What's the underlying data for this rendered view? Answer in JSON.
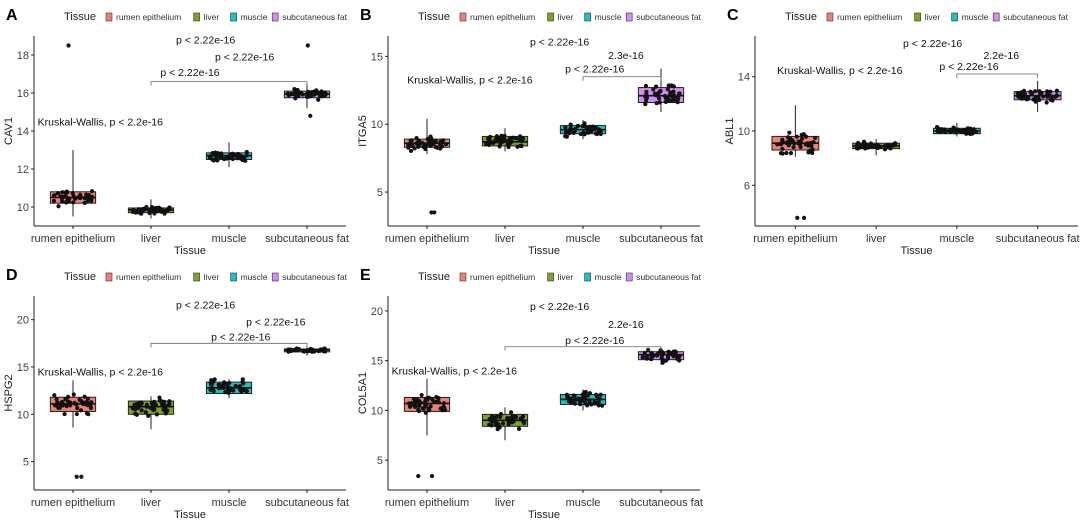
{
  "figure": {
    "description": "Multi-panel boxplot figure of gene expression across tissues"
  },
  "palette": {
    "rumen epithelium": "#f07f76",
    "liver": "#7da22c",
    "muscle": "#1fbfc6",
    "subcutaneous fat": "#d58cf0",
    "points": "#111111",
    "axis": "#222222"
  },
  "chart_data": [
    {
      "panel": "A",
      "type": "box",
      "legend_title": "Tissue",
      "legend_items": [
        "rumen epithelium",
        "liver",
        "muscle",
        "subcutaneous fat"
      ],
      "xlabel": "Tissue",
      "ylabel": "CAV1",
      "categories": [
        "rumen epithelium",
        "liver",
        "muscle",
        "subcutaneous fat"
      ],
      "ylim": [
        9,
        19
      ],
      "yticks": [
        10,
        12,
        14,
        16,
        18
      ],
      "boxes": [
        {
          "category": "rumen epithelium",
          "min": 9.5,
          "q1": 10.2,
          "median": 10.5,
          "q3": 10.8,
          "max": 13.0,
          "outliers": [
            18.5
          ]
        },
        {
          "category": "liver",
          "min": 9.4,
          "q1": 9.7,
          "median": 9.85,
          "q3": 9.95,
          "max": 10.4,
          "outliers": []
        },
        {
          "category": "muscle",
          "min": 12.1,
          "q1": 12.5,
          "median": 12.7,
          "q3": 12.85,
          "max": 13.4,
          "outliers": []
        },
        {
          "category": "subcutaneous fat",
          "min": 15.2,
          "q1": 15.75,
          "median": 15.95,
          "q3": 16.1,
          "max": 16.5,
          "outliers": [
            14.8,
            18.5
          ]
        }
      ],
      "annotations": [
        {
          "text": "Kruskal-Wallis, p < 2.2e-16",
          "at_category": 0.85,
          "y": 14.3
        },
        {
          "text": "p < 2.22e-16",
          "at_category": 2.2,
          "y": 18.6
        },
        {
          "text": "p < 2.22e-16",
          "at_category": 2.7,
          "y": 17.7
        },
        {
          "text": "p < 2.22e-16",
          "at_category": 2.0,
          "y": 16.9
        }
      ],
      "brackets": [
        {
          "from": 1,
          "to": 3,
          "y": 16.6
        }
      ]
    },
    {
      "panel": "B",
      "type": "box",
      "legend_title": "Tissue",
      "legend_items": [
        "rumen epithelium",
        "liver",
        "muscle",
        "subcutaneous fat"
      ],
      "xlabel": "Tissue",
      "ylabel": "ITGA5",
      "categories": [
        "rumen epithelium",
        "liver",
        "muscle",
        "subcutaneous fat"
      ],
      "ylim": [
        2.5,
        16.5
      ],
      "yticks": [
        5,
        10,
        15
      ],
      "boxes": [
        {
          "category": "rumen epithelium",
          "min": 7.8,
          "q1": 8.3,
          "median": 8.6,
          "q3": 8.9,
          "max": 10.4,
          "outliers": [
            3.5,
            3.5
          ]
        },
        {
          "category": "liver",
          "min": 8.0,
          "q1": 8.4,
          "median": 8.7,
          "q3": 9.1,
          "max": 9.7,
          "outliers": []
        },
        {
          "category": "muscle",
          "min": 8.9,
          "q1": 9.3,
          "median": 9.6,
          "q3": 9.9,
          "max": 10.3,
          "outliers": []
        },
        {
          "category": "subcutaneous fat",
          "min": 10.9,
          "q1": 11.6,
          "median": 12.1,
          "q3": 12.7,
          "max": 14.1,
          "outliers": []
        }
      ],
      "annotations": [
        {
          "text": "Kruskal-Wallis, p < 2.2e-16",
          "at_category": 1.05,
          "y": 13.0
        },
        {
          "text": "p < 2.22e-16",
          "at_category": 2.2,
          "y": 15.8
        },
        {
          "text": "2.3e-16",
          "at_category": 3.05,
          "y": 14.8
        },
        {
          "text": "p < 2.22e-16",
          "at_category": 2.65,
          "y": 13.8
        }
      ],
      "brackets": [
        {
          "from": 2,
          "to": 3,
          "y": 13.5
        }
      ]
    },
    {
      "panel": "C",
      "type": "box",
      "legend_title": "Tissue",
      "legend_items": [
        "rumen epithelium",
        "liver",
        "muscle",
        "subcutaneous fat"
      ],
      "xlabel": "Tissue",
      "ylabel": "ABL1",
      "categories": [
        "rumen epithelium",
        "liver",
        "muscle",
        "subcutaneous fat"
      ],
      "ylim": [
        3,
        17
      ],
      "yticks": [
        6,
        10,
        14
      ],
      "boxes": [
        {
          "category": "rumen epithelium",
          "min": 8.1,
          "q1": 8.6,
          "median": 9.1,
          "q3": 9.6,
          "max": 11.9,
          "outliers": [
            3.6,
            3.6
          ]
        },
        {
          "category": "liver",
          "min": 8.2,
          "q1": 8.7,
          "median": 8.9,
          "q3": 9.1,
          "max": 9.4,
          "outliers": []
        },
        {
          "category": "muscle",
          "min": 9.6,
          "q1": 9.8,
          "median": 10.0,
          "q3": 10.2,
          "max": 10.6,
          "outliers": []
        },
        {
          "category": "subcutaneous fat",
          "min": 11.4,
          "q1": 12.3,
          "median": 12.6,
          "q3": 12.9,
          "max": 13.7,
          "outliers": []
        }
      ],
      "annotations": [
        {
          "text": "Kruskal-Wallis, p < 2.2e-16",
          "at_category": 1.05,
          "y": 14.2
        },
        {
          "text": "p < 2.22e-16",
          "at_category": 2.2,
          "y": 16.2
        },
        {
          "text": "2.2e-16",
          "at_category": 3.05,
          "y": 15.3
        },
        {
          "text": "p < 2.22e-16",
          "at_category": 2.65,
          "y": 14.5
        }
      ],
      "brackets": [
        {
          "from": 2,
          "to": 3,
          "y": 14.2
        }
      ]
    },
    {
      "panel": "D",
      "type": "box",
      "legend_title": "Tissue",
      "legend_items": [
        "rumen epithelium",
        "liver",
        "muscle",
        "subcutaneous fat"
      ],
      "xlabel": "Tissue",
      "ylabel": "HSPG2",
      "categories": [
        "rumen epithelium",
        "liver",
        "muscle",
        "subcutaneous fat"
      ],
      "ylim": [
        2,
        22.5
      ],
      "yticks": [
        5,
        10,
        15,
        20
      ],
      "boxes": [
        {
          "category": "rumen epithelium",
          "min": 8.6,
          "q1": 10.3,
          "median": 11.1,
          "q3": 11.8,
          "max": 13.6,
          "outliers": [
            3.4,
            3.4
          ]
        },
        {
          "category": "liver",
          "min": 8.4,
          "q1": 10.0,
          "median": 10.8,
          "q3": 11.4,
          "max": 11.9,
          "outliers": []
        },
        {
          "category": "muscle",
          "min": 11.7,
          "q1": 12.2,
          "median": 12.8,
          "q3": 13.4,
          "max": 13.7,
          "outliers": []
        },
        {
          "category": "subcutaneous fat",
          "min": 16.2,
          "q1": 16.6,
          "median": 16.8,
          "q3": 16.9,
          "max": 17.2,
          "outliers": []
        }
      ],
      "annotations": [
        {
          "text": "Kruskal-Wallis, p < 2.2e-16",
          "at_category": 0.85,
          "y": 14.1
        },
        {
          "text": "p < 2.22e-16",
          "at_category": 2.2,
          "y": 21.2
        },
        {
          "text": "p < 2.22e-16",
          "at_category": 3.1,
          "y": 19.4
        },
        {
          "text": "p < 2.22e-16",
          "at_category": 2.65,
          "y": 17.8
        }
      ],
      "brackets": [
        {
          "from": 1,
          "to": 3,
          "y": 17.5
        }
      ]
    },
    {
      "panel": "E",
      "type": "box",
      "legend_title": "Tissue",
      "legend_items": [
        "rumen epithelium",
        "liver",
        "muscle",
        "subcutaneous fat"
      ],
      "xlabel": "Tissue",
      "ylabel": "COL5A1",
      "categories": [
        "rumen epithelium",
        "liver",
        "muscle",
        "subcutaneous fat"
      ],
      "ylim": [
        2,
        21.5
      ],
      "yticks": [
        5,
        10,
        15,
        20
      ],
      "boxes": [
        {
          "category": "rumen epithelium",
          "min": 7.5,
          "q1": 9.9,
          "median": 10.7,
          "q3": 11.3,
          "max": 13.2,
          "outliers": [
            3.4,
            3.4
          ]
        },
        {
          "category": "liver",
          "min": 7.0,
          "q1": 8.4,
          "median": 9.0,
          "q3": 9.6,
          "max": 10.3,
          "outliers": []
        },
        {
          "category": "muscle",
          "min": 10.0,
          "q1": 10.6,
          "median": 11.1,
          "q3": 11.6,
          "max": 12.1,
          "outliers": []
        },
        {
          "category": "subcutaneous fat",
          "min": 14.6,
          "q1": 15.1,
          "median": 15.6,
          "q3": 15.9,
          "max": 16.3,
          "outliers": []
        }
      ],
      "annotations": [
        {
          "text": "Kruskal-Wallis, p < 2.2e-16",
          "at_category": 0.85,
          "y": 13.6
        },
        {
          "text": "p < 2.22e-16",
          "at_category": 2.2,
          "y": 20.1
        },
        {
          "text": "2.2e-16",
          "at_category": 3.05,
          "y": 18.3
        },
        {
          "text": "p < 2.22e-16",
          "at_category": 2.65,
          "y": 16.7
        }
      ],
      "brackets": [
        {
          "from": 1,
          "to": 3,
          "y": 16.4
        }
      ]
    }
  ]
}
